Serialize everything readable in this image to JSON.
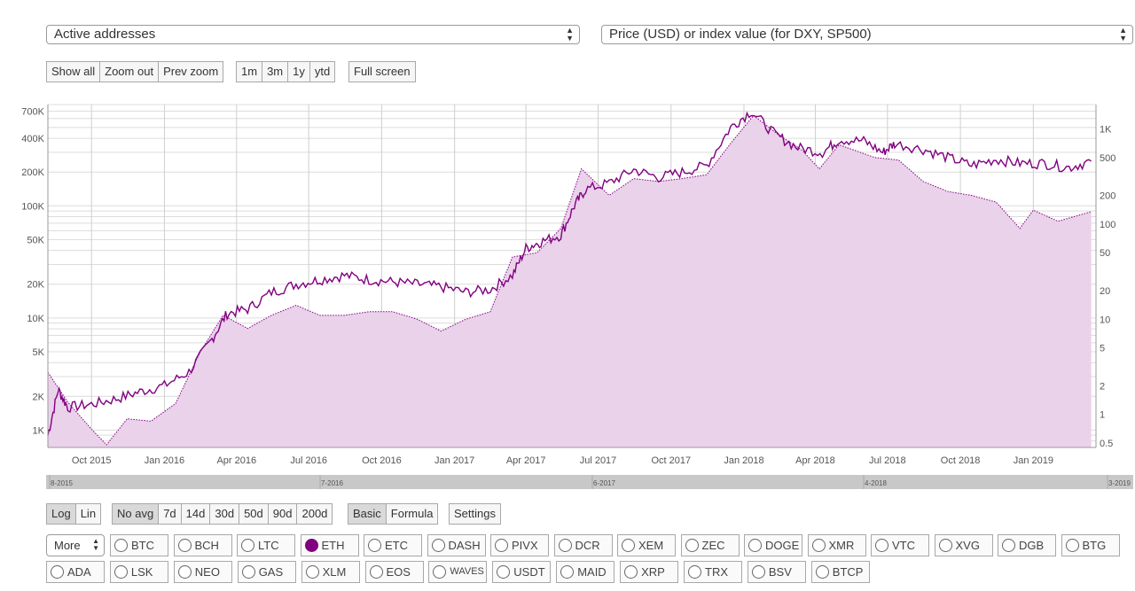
{
  "controls": {
    "metric_select": "Active addresses",
    "price_select": "Price (USD) or index value (for DXY, SP500)",
    "zoom_buttons": [
      "Show all",
      "Zoom out",
      "Prev zoom"
    ],
    "range_buttons": [
      "1m",
      "3m",
      "1y",
      "ytd"
    ],
    "fullscreen": "Full screen",
    "scale_buttons": [
      "Log",
      "Lin"
    ],
    "avg_buttons": [
      "No avg",
      "7d",
      "14d",
      "30d",
      "50d",
      "90d",
      "200d"
    ],
    "mode_buttons": [
      "Basic",
      "Formula"
    ],
    "settings": "Settings",
    "more_select": "More"
  },
  "coins": {
    "row1": [
      "BTC",
      "BCH",
      "LTC",
      "ETH",
      "ETC",
      "DASH",
      "PIVX",
      "DCR",
      "XEM",
      "ZEC",
      "DOGE",
      "XMR",
      "VTC",
      "XVG",
      "DGB",
      "BTG"
    ],
    "row2": [
      "ADA",
      "LSK",
      "NEO",
      "GAS",
      "XLM",
      "EOS",
      "WAVES",
      "USDT",
      "MAID",
      "XRP",
      "TRX",
      "BSV",
      "BTCP"
    ],
    "selected": "ETH"
  },
  "navigator_labels": [
    "8-2015",
    "7-2016",
    "6-2017",
    "4-2018",
    "3-2019"
  ],
  "chart_data": {
    "type": "area",
    "x_ticks": [
      "Oct 2015",
      "Jan 2016",
      "Apr 2016",
      "Jul 2016",
      "Oct 2016",
      "Jan 2017",
      "Apr 2017",
      "Jul 2017",
      "Oct 2017",
      "Jan 2018",
      "Apr 2018",
      "Jul 2018",
      "Oct 2018",
      "Jan 2019"
    ],
    "y_left": {
      "label": "Active addresses",
      "scale": "log",
      "range": [
        700,
        800000
      ],
      "ticks": [
        "700K",
        "400K",
        "200K",
        "100K",
        "50K",
        "20K",
        "10K",
        "5K",
        "2K",
        "1K"
      ]
    },
    "y_right": {
      "label": "Price (USD)",
      "scale": "log",
      "range": [
        0.45,
        1800
      ],
      "ticks": [
        "1K",
        "500",
        "200",
        "100",
        "50",
        "20",
        "10",
        "5",
        "2",
        "1",
        "0.5"
      ]
    },
    "color": "#800080",
    "fill_color": "#ead2ea",
    "series": [
      {
        "name": "Active addresses",
        "style": "solid",
        "axis": "left",
        "points": [
          [
            "2015-08-07",
            900
          ],
          [
            "2015-08-20",
            2300
          ],
          [
            "2015-09-01",
            1600
          ],
          [
            "2015-10-01",
            1700
          ],
          [
            "2015-11-01",
            1900
          ],
          [
            "2015-12-01",
            2200
          ],
          [
            "2016-01-01",
            2500
          ],
          [
            "2016-02-01",
            3300
          ],
          [
            "2016-03-01",
            6500
          ],
          [
            "2016-03-20",
            11000
          ],
          [
            "2016-04-15",
            12000
          ],
          [
            "2016-05-15",
            17000
          ],
          [
            "2016-06-15",
            20000
          ],
          [
            "2016-07-15",
            22000
          ],
          [
            "2016-08-15",
            24000
          ],
          [
            "2016-09-15",
            22000
          ],
          [
            "2016-10-15",
            21000
          ],
          [
            "2016-11-15",
            20000
          ],
          [
            "2016-12-15",
            19000
          ],
          [
            "2017-01-15",
            17000
          ],
          [
            "2017-02-15",
            18000
          ],
          [
            "2017-03-15",
            24000
          ],
          [
            "2017-04-01",
            42000
          ],
          [
            "2017-04-20",
            48000
          ],
          [
            "2017-05-15",
            55000
          ],
          [
            "2017-06-01",
            100000
          ],
          [
            "2017-06-15",
            140000
          ],
          [
            "2017-07-15",
            160000
          ],
          [
            "2017-08-15",
            210000
          ],
          [
            "2017-09-15",
            180000
          ],
          [
            "2017-10-15",
            200000
          ],
          [
            "2017-11-15",
            230000
          ],
          [
            "2017-12-15",
            500000
          ],
          [
            "2018-01-10",
            700000
          ],
          [
            "2018-02-10",
            430000
          ],
          [
            "2018-03-10",
            330000
          ],
          [
            "2018-04-10",
            300000
          ],
          [
            "2018-05-01",
            390000
          ],
          [
            "2018-06-01",
            380000
          ],
          [
            "2018-06-25",
            300000
          ],
          [
            "2018-07-10",
            360000
          ],
          [
            "2018-08-15",
            320000
          ],
          [
            "2018-09-15",
            270000
          ],
          [
            "2018-10-15",
            230000
          ],
          [
            "2018-11-15",
            260000
          ],
          [
            "2018-12-15",
            240000
          ],
          [
            "2019-01-15",
            240000
          ],
          [
            "2019-02-15",
            220000
          ],
          [
            "2019-03-15",
            250000
          ]
        ]
      },
      {
        "name": "Price (USD)",
        "style": "dotted",
        "axis": "right",
        "points": [
          [
            "2015-08-07",
            2.77
          ],
          [
            "2015-09-01",
            1.35
          ],
          [
            "2015-10-01",
            0.7
          ],
          [
            "2015-10-20",
            0.48
          ],
          [
            "2015-11-15",
            0.9
          ],
          [
            "2015-12-15",
            0.85
          ],
          [
            "2016-01-15",
            1.3
          ],
          [
            "2016-02-15",
            4.5
          ],
          [
            "2016-03-15",
            11
          ],
          [
            "2016-04-15",
            8
          ],
          [
            "2016-05-15",
            11
          ],
          [
            "2016-06-15",
            14
          ],
          [
            "2016-07-15",
            11
          ],
          [
            "2016-08-15",
            11
          ],
          [
            "2016-09-15",
            12
          ],
          [
            "2016-10-15",
            12
          ],
          [
            "2016-11-15",
            10
          ],
          [
            "2016-12-15",
            7.5
          ],
          [
            "2017-01-15",
            10
          ],
          [
            "2017-02-15",
            12
          ],
          [
            "2017-03-15",
            45
          ],
          [
            "2017-04-15",
            50
          ],
          [
            "2017-05-15",
            90
          ],
          [
            "2017-06-10",
            380
          ],
          [
            "2017-07-15",
            200
          ],
          [
            "2017-08-15",
            300
          ],
          [
            "2017-09-15",
            280
          ],
          [
            "2017-10-15",
            300
          ],
          [
            "2017-11-15",
            330
          ],
          [
            "2017-12-15",
            700
          ],
          [
            "2018-01-13",
            1380
          ],
          [
            "2018-02-15",
            850
          ],
          [
            "2018-03-15",
            600
          ],
          [
            "2018-04-06",
            380
          ],
          [
            "2018-05-01",
            680
          ],
          [
            "2018-06-15",
            500
          ],
          [
            "2018-07-15",
            470
          ],
          [
            "2018-08-15",
            280
          ],
          [
            "2018-09-15",
            220
          ],
          [
            "2018-10-15",
            200
          ],
          [
            "2018-11-15",
            170
          ],
          [
            "2018-12-15",
            90
          ],
          [
            "2019-01-01",
            140
          ],
          [
            "2019-02-01",
            107
          ],
          [
            "2019-03-15",
            135
          ]
        ]
      }
    ],
    "grid": true
  }
}
